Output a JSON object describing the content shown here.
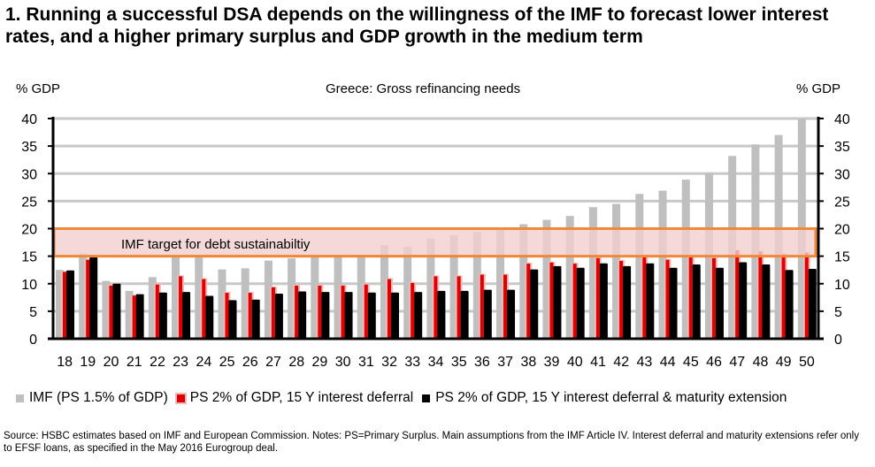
{
  "title": "1. Running a successful DSA depends on the willingness of the IMF to forecast lower interest rates, and a higher primary surplus and GDP growth in the medium term",
  "source": "Source: HSBC estimates based on IMF and European Commission. Notes: PS=Primary Surplus. Main assumptions from the IMF Article IV. Interest deferral and maturity extensions refer only to EFSF loans, as specified in the May 2016 Eurogroup deal.",
  "chart_data": {
    "type": "bar",
    "title": "Greece: Gross refinancing needs",
    "ylabel": "% GDP",
    "ylabel_right": "% GDP",
    "ylim": [
      0,
      40
    ],
    "yticks": [
      0,
      5,
      10,
      15,
      20,
      25,
      30,
      35,
      40
    ],
    "grid": true,
    "legend_position": "bottom",
    "categories": [
      "18",
      "19",
      "20",
      "21",
      "22",
      "23",
      "24",
      "25",
      "26",
      "27",
      "28",
      "29",
      "30",
      "31",
      "32",
      "33",
      "34",
      "35",
      "36",
      "37",
      "38",
      "39",
      "40",
      "41",
      "42",
      "43",
      "44",
      "45",
      "46",
      "47",
      "48",
      "49",
      "50"
    ],
    "series": [
      {
        "name": "IMF (PS 1.5% of GDP)",
        "color": "#bfbfbf",
        "values": [
          12.5,
          15.5,
          10.5,
          8.7,
          11.2,
          15.0,
          15.0,
          12.6,
          12.8,
          14.2,
          14.6,
          15.0,
          15.0,
          15.0,
          17.0,
          16.7,
          18.2,
          18.8,
          19.4,
          19.8,
          20.8,
          21.6,
          22.3,
          23.9,
          24.5,
          26.3,
          26.9,
          28.9,
          30.1,
          33.2,
          35.3,
          37.0,
          40.0
        ]
      },
      {
        "name": "PS 2% of GDP, 15 Y interest deferral",
        "color": "#e00000",
        "values": [
          12.3,
          14.5,
          9.8,
          8.0,
          10.0,
          11.5,
          11.0,
          8.5,
          8.5,
          9.5,
          9.8,
          9.8,
          9.8,
          10.0,
          11.0,
          10.3,
          11.5,
          11.5,
          11.8,
          11.8,
          13.8,
          14.0,
          13.8,
          14.8,
          14.3,
          15.2,
          14.5,
          15.3,
          14.8,
          16.2,
          16.0,
          15.5,
          15.8
        ]
      },
      {
        "name": "PS 2% of GDP, 15 Y interest deferral & maturity extension",
        "color": "#000000",
        "values": [
          12.4,
          14.8,
          10.0,
          8.1,
          8.4,
          8.5,
          7.8,
          7.0,
          7.1,
          8.2,
          8.6,
          8.5,
          8.5,
          8.4,
          8.4,
          8.5,
          8.7,
          8.7,
          8.9,
          8.9,
          12.6,
          13.2,
          12.9,
          13.7,
          13.2,
          13.7,
          12.9,
          13.5,
          12.9,
          13.9,
          13.5,
          12.5,
          12.7
        ]
      }
    ],
    "annotation": {
      "text": "IMF target for debt sustainabiltiy",
      "range": [
        15,
        20
      ],
      "fill": "#f2d0d0",
      "border": "#f0883a"
    }
  }
}
